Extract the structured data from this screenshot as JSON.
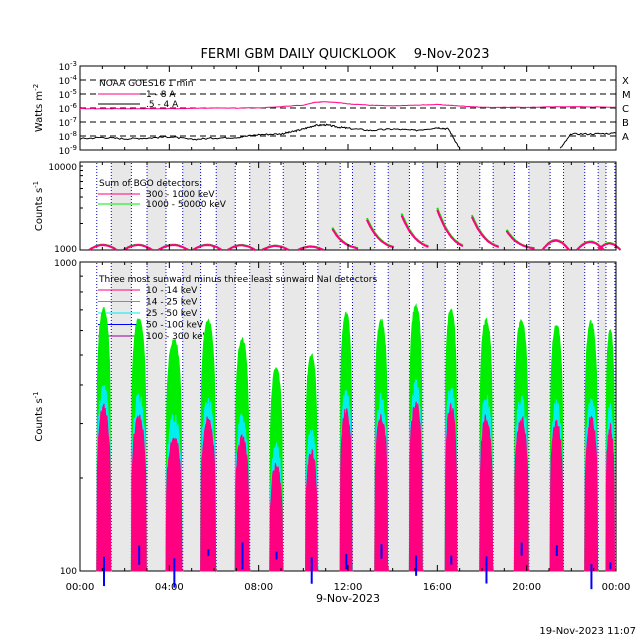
{
  "title": "FERMI GBM DAILY QUICKLOOK",
  "date": "9-Nov-2023",
  "footer_timestamp": "19-Nov-2023 11:07",
  "colors": {
    "magenta": "#ff0080",
    "green": "#00ee00",
    "cyan": "#00eeee",
    "blue": "#0000ff",
    "purple": "#990099",
    "black": "#000000",
    "night_dots": "#0000cc",
    "saa_shade": "#e8e8e8"
  },
  "chart_data": [
    {
      "type": "line",
      "panel": "goes",
      "ylabel": "Watts m",
      "ylabel_sup": "-2",
      "y_scale": "log",
      "ylim_exp": [
        -9,
        -3
      ],
      "y_tick_labels": [
        {
          "base": "10",
          "exp": "-3"
        },
        {
          "base": "10",
          "exp": "-4"
        },
        {
          "base": "10",
          "exp": "-5"
        },
        {
          "base": "10",
          "exp": "-6"
        },
        {
          "base": "10",
          "exp": "-7"
        },
        {
          "base": "10",
          "exp": "-8"
        },
        {
          "base": "10",
          "exp": "-9"
        }
      ],
      "flare_classes": [
        {
          "label": "X",
          "exp": -4
        },
        {
          "label": "M",
          "exp": -5
        },
        {
          "label": "C",
          "exp": -6
        },
        {
          "label": "B",
          "exp": -7
        },
        {
          "label": "A",
          "exp": -8
        }
      ],
      "legend_title": "NOAA GOES16 1 min",
      "series": [
        {
          "name": "1 - 8 A",
          "color": "#ff0080",
          "x": [
            0,
            2,
            4,
            6,
            8,
            10,
            10.5,
            11,
            11.5,
            12,
            13,
            14,
            15,
            16,
            17,
            18,
            20,
            22,
            24
          ],
          "log_y": [
            -6.05,
            -6.05,
            -6.05,
            -6.0,
            -6.0,
            -5.8,
            -5.6,
            -5.55,
            -5.6,
            -5.7,
            -5.8,
            -5.85,
            -5.8,
            -5.75,
            -5.85,
            -5.95,
            -5.95,
            -5.9,
            -5.95
          ]
        },
        {
          "name": ".5 - 4 A",
          "color": "#000000",
          "x": [
            0,
            1,
            2,
            3,
            4,
            5,
            6,
            7,
            8,
            9,
            9.5,
            10,
            10.5,
            11,
            11.5,
            12,
            13,
            14,
            15,
            16,
            16.5,
            17
          ],
          "log_y": [
            -8.2,
            -8.1,
            -8.2,
            -8.15,
            -8.05,
            -8.25,
            -8.15,
            -8.1,
            -7.9,
            -7.85,
            -7.7,
            -7.5,
            -7.25,
            -7.2,
            -7.35,
            -7.45,
            -7.6,
            -7.5,
            -7.6,
            -7.4,
            -7.5,
            -8.9
          ],
          "x2": [
            21.5,
            22,
            23,
            24
          ],
          "log_y2": [
            -8.9,
            -7.85,
            -7.85,
            -7.8
          ]
        }
      ]
    },
    {
      "type": "line",
      "panel": "bgo",
      "ylabel": "Counts s",
      "ylabel_sup": "-1",
      "y_scale": "log",
      "ylim": [
        1000,
        10000
      ],
      "y_tick_labels": [
        "10000",
        "1000"
      ],
      "legend_title": "Sum of BGO detectors:",
      "series": [
        {
          "name": "300 - 1000 keV",
          "color": "#ff0080"
        },
        {
          "name": "1000 - 50000 keV",
          "color": "#00ee00"
        }
      ]
    },
    {
      "type": "line",
      "panel": "nai",
      "ylabel": "Counts s",
      "ylabel_sup": "-1",
      "y_scale": "log",
      "ylim": [
        100,
        1000
      ],
      "y_tick_labels": [
        "1000",
        "100"
      ],
      "legend_title": "Three most sunward minus three least sunward NaI detectors",
      "series": [
        {
          "name": "10 - 14 keV",
          "color": "#ff0080"
        },
        {
          "name": "14 - 25 keV",
          "color": "#00ee00"
        },
        {
          "name": "25 - 50 keV",
          "color": "#00eeee"
        },
        {
          "name": "50 - 100 keV",
          "color": "#0000ff"
        },
        {
          "name": "100 - 300 keV",
          "color": "#990099"
        }
      ]
    }
  ],
  "x_axis": {
    "ticks": [
      "00:00",
      "04:00",
      "08:00",
      "12:00",
      "16:00",
      "20:00",
      "00:00"
    ],
    "tick_hours": [
      0,
      4,
      8,
      12,
      16,
      20,
      24
    ],
    "label": "9-Nov-2023",
    "xlim_hours": [
      0,
      24
    ]
  },
  "orbit_passes": [
    {
      "start": 0.75,
      "end": 1.4
    },
    {
      "start": 2.3,
      "end": 3.0
    },
    {
      "start": 3.85,
      "end": 4.6
    },
    {
      "start": 5.4,
      "end": 6.1
    },
    {
      "start": 6.95,
      "end": 7.6
    },
    {
      "start": 8.5,
      "end": 9.1
    },
    {
      "start": 10.1,
      "end": 10.65
    },
    {
      "start": 11.65,
      "end": 12.2
    },
    {
      "start": 13.2,
      "end": 13.8
    },
    {
      "start": 14.75,
      "end": 15.35
    },
    {
      "start": 16.35,
      "end": 16.9
    },
    {
      "start": 17.9,
      "end": 18.5
    },
    {
      "start": 19.45,
      "end": 20.1
    },
    {
      "start": 21.05,
      "end": 21.65
    },
    {
      "start": 22.6,
      "end": 23.2
    },
    {
      "start": 23.55,
      "end": 23.95
    }
  ]
}
